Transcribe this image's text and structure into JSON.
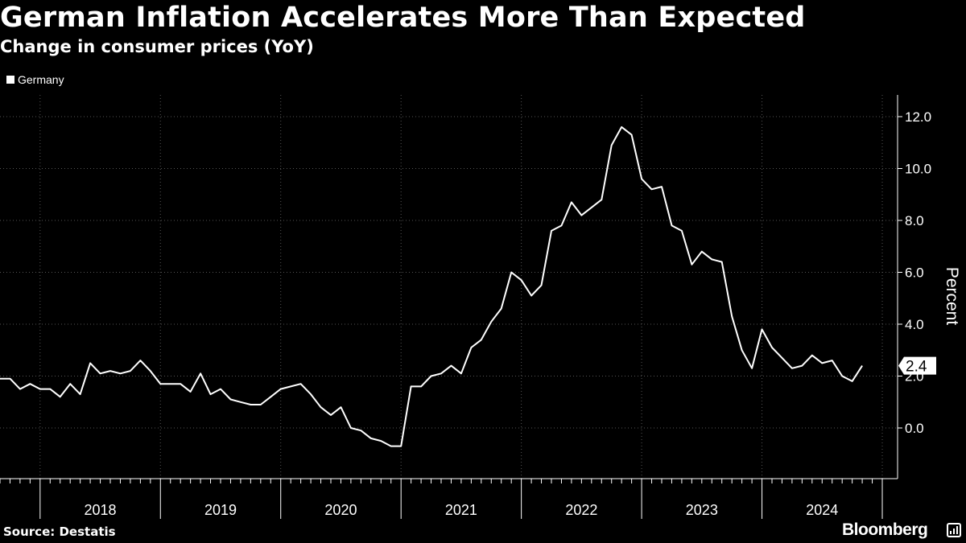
{
  "header": {
    "title": "German Inflation Accelerates More Than Expected",
    "subtitle": "Change in consumer prices (YoY)"
  },
  "footer": {
    "source": "Source: Destatis",
    "brand": "Bloomberg"
  },
  "colors": {
    "background": "#000000",
    "line": "#ffffff",
    "grid": "#555555"
  },
  "chart_data": {
    "type": "line",
    "title": "German Inflation Accelerates More Than Expected",
    "subtitle": "Change in consumer prices (YoY)",
    "ylabel": "Percent",
    "xlabel": "",
    "ylim": [
      -2.0,
      12.8
    ],
    "yticks": [
      0.0,
      2.0,
      4.0,
      6.0,
      8.0,
      10.0,
      12.0
    ],
    "ytick_labels": [
      "0.0",
      "2.0",
      "4.0",
      "6.0",
      "8.0",
      "10.0",
      "12.0"
    ],
    "x_start": "2017-09",
    "x_range_months": [
      0,
      88
    ],
    "year_labels": [
      "2018",
      "2019",
      "2020",
      "2021",
      "2022",
      "2023",
      "2024"
    ],
    "legend": {
      "position": "top-left",
      "entries": [
        "Germany"
      ]
    },
    "last_value_label": "2.4",
    "series": [
      {
        "name": "Germany",
        "start": "2017-09",
        "frequency": "monthly",
        "values": [
          1.9,
          1.9,
          1.5,
          1.7,
          1.5,
          1.5,
          1.2,
          1.7,
          1.3,
          2.5,
          2.1,
          2.2,
          2.1,
          2.2,
          2.6,
          2.2,
          1.7,
          1.7,
          1.7,
          1.4,
          2.1,
          1.3,
          1.5,
          1.1,
          1.0,
          0.9,
          0.9,
          1.2,
          1.5,
          1.6,
          1.7,
          1.3,
          0.8,
          0.5,
          0.8,
          0.0,
          -0.1,
          -0.4,
          -0.5,
          -0.7,
          -0.7,
          1.6,
          1.6,
          2.0,
          2.1,
          2.4,
          2.1,
          3.1,
          3.4,
          4.1,
          4.6,
          6.0,
          5.7,
          5.1,
          5.5,
          7.6,
          7.8,
          8.7,
          8.2,
          8.5,
          8.8,
          10.9,
          11.6,
          11.3,
          9.6,
          9.2,
          9.3,
          7.8,
          7.6,
          6.3,
          6.8,
          6.5,
          6.4,
          4.3,
          3.0,
          2.3,
          3.8,
          3.1,
          2.7,
          2.3,
          2.4,
          2.8,
          2.5,
          2.6,
          2.0,
          1.8,
          2.4
        ]
      }
    ]
  }
}
